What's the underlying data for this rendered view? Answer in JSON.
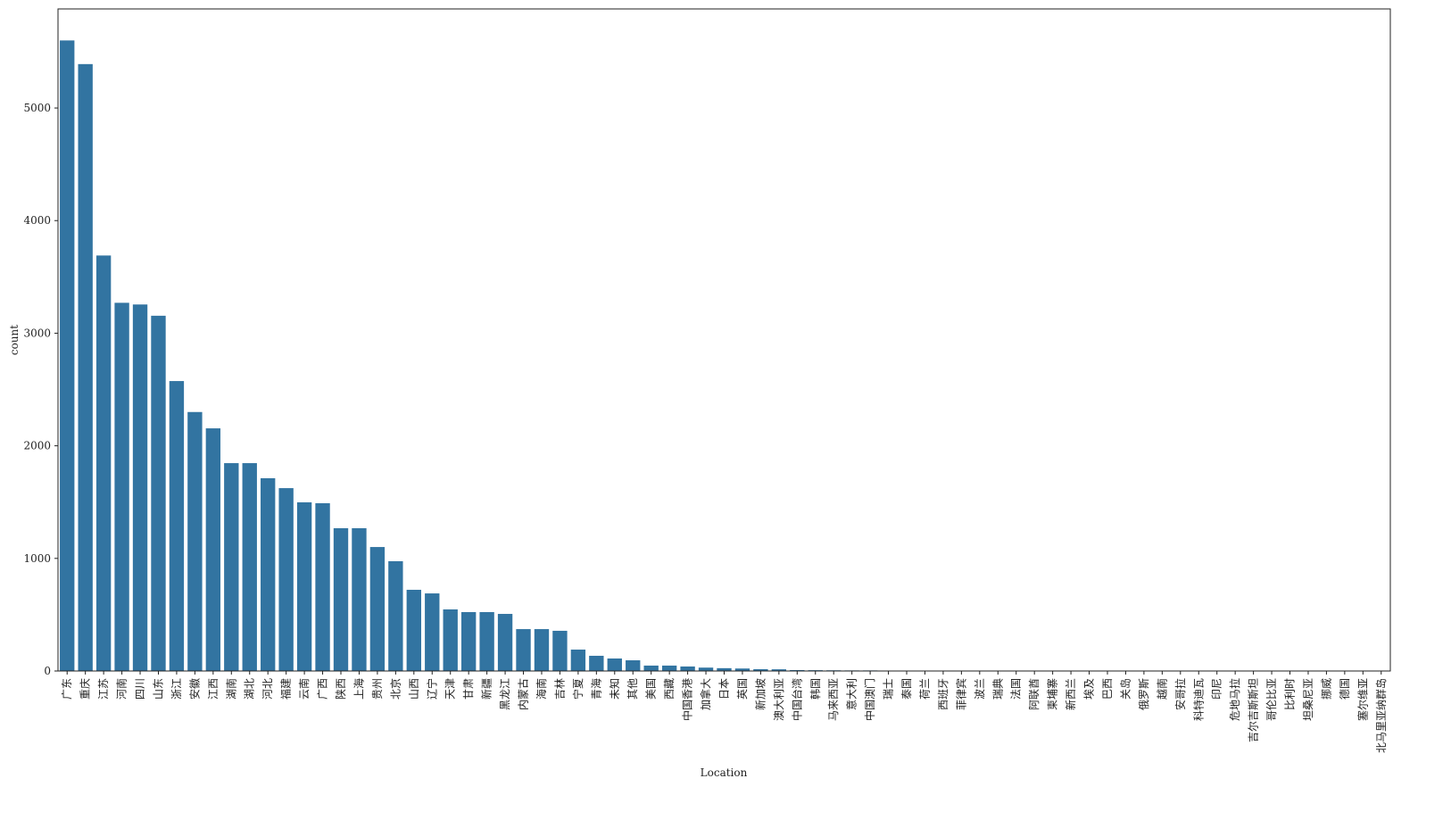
{
  "chart_data": {
    "type": "bar",
    "x_label": "Location",
    "y_label": "count",
    "categories": [
      "广东",
      "重庆",
      "江苏",
      "河南",
      "四川",
      "山东",
      "浙江",
      "安徽",
      "江西",
      "湖南",
      "湖北",
      "河北",
      "福建",
      "云南",
      "广西",
      "陕西",
      "上海",
      "贵州",
      "北京",
      "山西",
      "辽宁",
      "天津",
      "甘肃",
      "新疆",
      "黑龙江",
      "内蒙古",
      "海南",
      "吉林",
      "宁夏",
      "青海",
      "未知",
      "其他",
      "美国",
      "西藏",
      "中国香港",
      "加拿大",
      "日本",
      "英国",
      "新加坡",
      "澳大利亚",
      "中国台湾",
      "韩国",
      "马来西亚",
      "意大利",
      "中国澳门",
      "瑞士",
      "泰国",
      "荷兰",
      "西班牙",
      "菲律宾",
      "波兰",
      "瑞典",
      "法国",
      "阿联酋",
      "柬埔寨",
      "新西兰",
      "埃及",
      "巴西",
      "关岛",
      "俄罗斯",
      "越南",
      "安哥拉",
      "科特迪瓦",
      "印尼",
      "危地马拉",
      "吉尔吉斯斯坦",
      "哥伦比亚",
      "比利时",
      "坦桑尼亚",
      "挪威",
      "德国",
      "塞尔维亚",
      "北马里亚纳群岛"
    ],
    "values": [
      5600,
      5390,
      3690,
      3270,
      3255,
      3155,
      2575,
      2300,
      2155,
      1846,
      1846,
      1712,
      1624,
      1498,
      1490,
      1268,
      1268,
      1101,
      975,
      721,
      689,
      547,
      523,
      523,
      507,
      372,
      372,
      357,
      190,
      135,
      111,
      95,
      48,
      48,
      40,
      30,
      25,
      22,
      16,
      15,
      8,
      7,
      6,
      5,
      5,
      4,
      4,
      3,
      3,
      3,
      3,
      2,
      2,
      2,
      2,
      2,
      2,
      2,
      1,
      1,
      1,
      1,
      1,
      1,
      1,
      1,
      1,
      1,
      1,
      1,
      1,
      1,
      1
    ],
    "color": "#3274a1",
    "ylim": [
      0,
      5880
    ],
    "yticks": [
      0,
      1000,
      2000,
      3000,
      4000,
      5000
    ],
    "grid": false
  }
}
